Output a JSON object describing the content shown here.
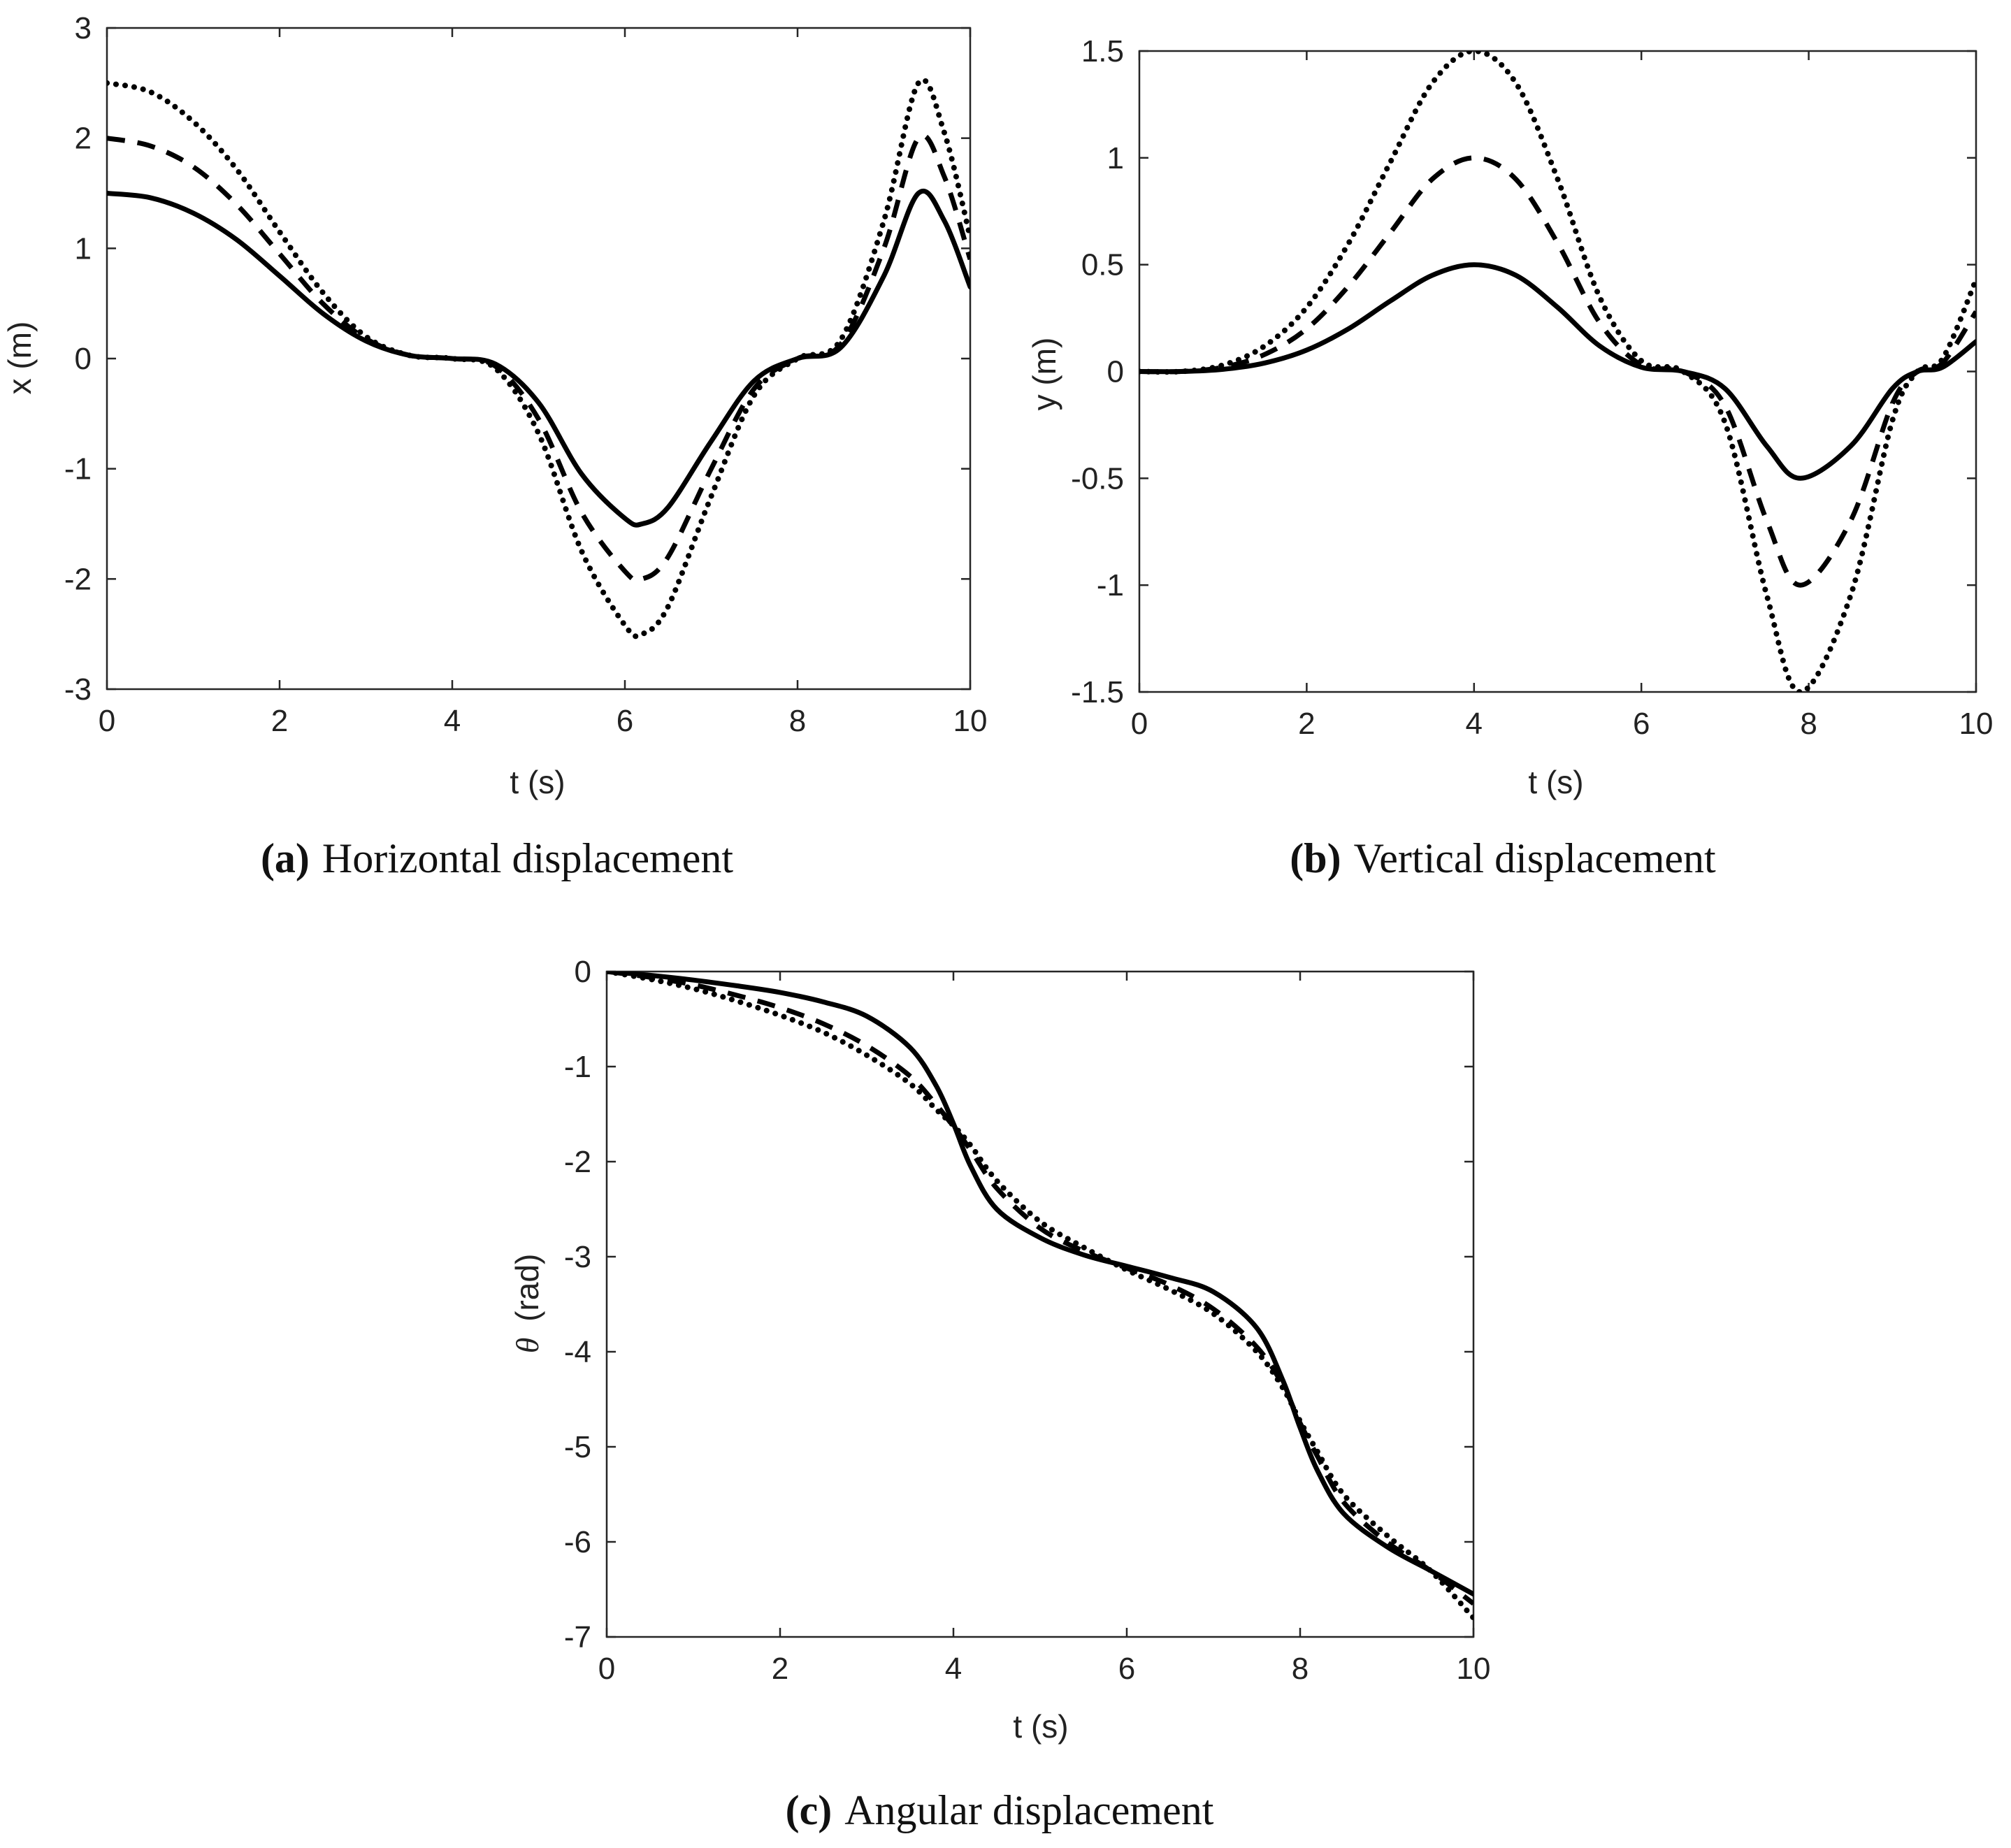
{
  "chart_data": [
    {
      "type": "line",
      "id": "a",
      "caption_letter": "(a)",
      "caption_text": "Horizontal displacement",
      "xlabel": "t (s)",
      "ylabel": "x (m)",
      "xlim": [
        0,
        10
      ],
      "ylim": [
        -3,
        3
      ],
      "xticks": [
        0,
        2,
        4,
        6,
        8,
        10
      ],
      "yticks": [
        -3,
        -2,
        -1,
        0,
        1,
        2,
        3
      ],
      "ytick_labels": [
        "-3",
        "-2",
        "-1",
        "0",
        "1",
        "2",
        "3"
      ],
      "x": [
        0,
        0.5,
        1,
        1.5,
        2,
        2.5,
        3,
        3.5,
        4,
        4.5,
        5,
        5.5,
        6,
        6.2,
        6.5,
        7,
        7.5,
        8,
        8.5,
        9,
        9.4,
        9.7,
        10
      ],
      "series": [
        {
          "name": "solid",
          "style": "solid",
          "values": [
            1.5,
            1.46,
            1.32,
            1.08,
            0.75,
            0.41,
            0.16,
            0.03,
            0.0,
            -0.05,
            -0.4,
            -1.05,
            -1.45,
            -1.5,
            -1.35,
            -0.75,
            -0.2,
            0.0,
            0.1,
            0.75,
            1.5,
            1.25,
            0.65
          ]
        },
        {
          "name": "dashed",
          "style": "dashed",
          "values": [
            2.0,
            1.93,
            1.74,
            1.4,
            0.95,
            0.5,
            0.18,
            0.03,
            0.0,
            -0.07,
            -0.55,
            -1.4,
            -1.93,
            -2.0,
            -1.8,
            -1.0,
            -0.27,
            0.0,
            0.13,
            1.0,
            2.0,
            1.65,
            0.9
          ]
        },
        {
          "name": "dotted",
          "style": "dotted",
          "values": [
            2.5,
            2.42,
            2.15,
            1.72,
            1.15,
            0.6,
            0.2,
            0.03,
            0.0,
            -0.09,
            -0.68,
            -1.75,
            -2.42,
            -2.5,
            -2.25,
            -1.25,
            -0.33,
            0.0,
            0.17,
            1.25,
            2.5,
            2.05,
            1.1
          ]
        }
      ]
    },
    {
      "type": "line",
      "id": "b",
      "caption_letter": "(b)",
      "caption_text": "Vertical displacement",
      "xlabel": "t (s)",
      "ylabel": "y (m)",
      "xlim": [
        0,
        10
      ],
      "ylim": [
        -1.5,
        1.5
      ],
      "xticks": [
        0,
        2,
        4,
        6,
        8,
        10
      ],
      "yticks": [
        -1.5,
        -1,
        -0.5,
        0,
        0.5,
        1,
        1.5
      ],
      "ytick_labels": [
        "-1.5",
        "-1",
        "-0.5",
        "0",
        "0.5",
        "1",
        "1.5"
      ],
      "x": [
        0,
        0.5,
        1,
        1.5,
        2,
        2.5,
        3,
        3.5,
        4,
        4.5,
        5,
        5.5,
        6,
        6.5,
        7,
        7.5,
        7.9,
        8.5,
        9,
        9.3,
        9.6,
        10
      ],
      "series": [
        {
          "name": "solid",
          "style": "solid",
          "values": [
            0.0,
            0.0,
            0.01,
            0.04,
            0.1,
            0.2,
            0.33,
            0.45,
            0.5,
            0.45,
            0.3,
            0.12,
            0.02,
            0.0,
            -0.08,
            -0.35,
            -0.5,
            -0.35,
            -0.08,
            0.0,
            0.02,
            0.14
          ]
        },
        {
          "name": "dashed",
          "style": "dashed",
          "values": [
            0.0,
            0.0,
            0.02,
            0.08,
            0.2,
            0.4,
            0.65,
            0.9,
            1.0,
            0.9,
            0.6,
            0.23,
            0.03,
            0.0,
            -0.16,
            -0.7,
            -1.0,
            -0.7,
            -0.15,
            0.0,
            0.04,
            0.28
          ]
        },
        {
          "name": "dotted",
          "style": "dotted",
          "values": [
            0.0,
            0.0,
            0.03,
            0.12,
            0.3,
            0.6,
            0.98,
            1.35,
            1.5,
            1.35,
            0.9,
            0.35,
            0.05,
            0.0,
            -0.24,
            -1.05,
            -1.5,
            -1.05,
            -0.23,
            0.0,
            0.06,
            0.43
          ]
        }
      ]
    },
    {
      "type": "line",
      "id": "c",
      "caption_letter": "(c)",
      "caption_text": "Angular displacement",
      "xlabel": "t (s)",
      "ylabel_symbol": "θ",
      "ylabel": "(rad)",
      "xlim": [
        0,
        10
      ],
      "ylim": [
        -7,
        0
      ],
      "xticks": [
        0,
        2,
        4,
        6,
        8,
        10
      ],
      "yticks": [
        -7,
        -6,
        -5,
        -4,
        -3,
        -2,
        -1,
        0
      ],
      "ytick_labels": [
        "-7",
        "-6",
        "-5",
        "-4",
        "-3",
        "-2",
        "-1",
        "0"
      ],
      "x": [
        0,
        0.5,
        1,
        1.5,
        2,
        2.5,
        3,
        3.5,
        3.8,
        4,
        4.2,
        4.5,
        5,
        5.5,
        6,
        6.5,
        7,
        7.5,
        7.8,
        8,
        8.2,
        8.5,
        9,
        9.5,
        10
      ],
      "series": [
        {
          "name": "solid",
          "style": "solid",
          "values": [
            0.0,
            -0.04,
            -0.09,
            -0.15,
            -0.22,
            -0.32,
            -0.47,
            -0.8,
            -1.2,
            -1.6,
            -2.05,
            -2.5,
            -2.8,
            -2.98,
            -3.1,
            -3.22,
            -3.37,
            -3.75,
            -4.3,
            -4.8,
            -5.25,
            -5.7,
            -6.05,
            -6.3,
            -6.55
          ]
        },
        {
          "name": "dashed",
          "style": "dashed",
          "values": [
            0.0,
            -0.06,
            -0.14,
            -0.25,
            -0.38,
            -0.55,
            -0.78,
            -1.1,
            -1.4,
            -1.63,
            -1.88,
            -2.28,
            -2.7,
            -2.94,
            -3.12,
            -3.3,
            -3.55,
            -3.95,
            -4.35,
            -4.75,
            -5.1,
            -5.58,
            -6.0,
            -6.3,
            -6.65
          ]
        },
        {
          "name": "dotted",
          "style": "dotted",
          "values": [
            0.0,
            -0.08,
            -0.18,
            -0.31,
            -0.46,
            -0.64,
            -0.88,
            -1.18,
            -1.45,
            -1.62,
            -1.83,
            -2.2,
            -2.63,
            -2.9,
            -3.14,
            -3.35,
            -3.6,
            -4.0,
            -4.38,
            -4.73,
            -5.05,
            -5.5,
            -5.93,
            -6.3,
            -6.8
          ]
        }
      ]
    }
  ]
}
